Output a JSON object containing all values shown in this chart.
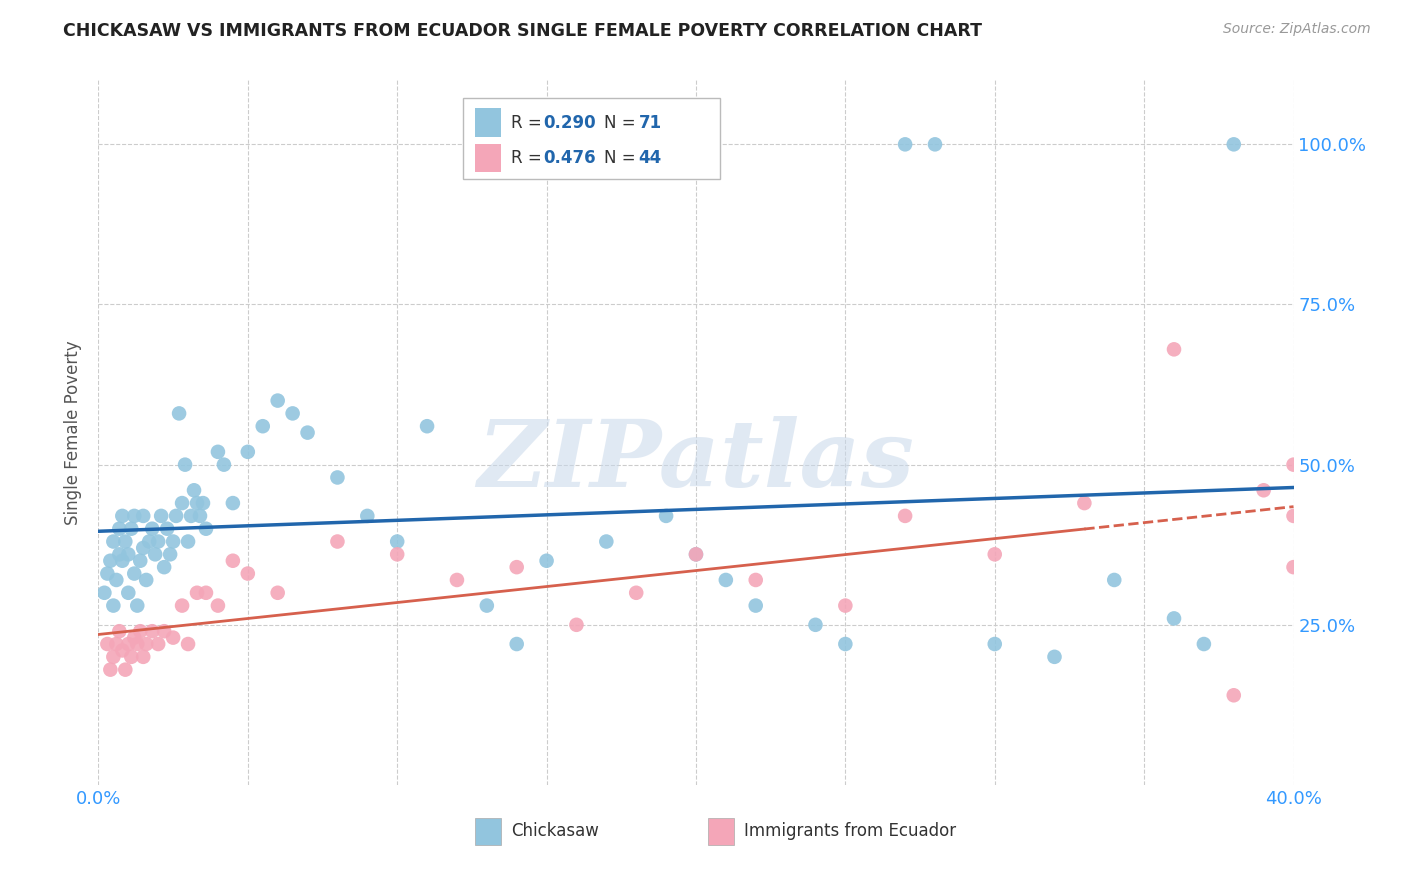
{
  "title": "CHICKASAW VS IMMIGRANTS FROM ECUADOR SINGLE FEMALE POVERTY CORRELATION CHART",
  "source": "Source: ZipAtlas.com",
  "ylabel": "Single Female Poverty",
  "legend_label1": "Chickasaw",
  "legend_label2": "Immigrants from Ecuador",
  "R1": 0.29,
  "N1": 71,
  "R2": 0.476,
  "N2": 44,
  "color1": "#92c5de",
  "color2": "#f4a6b8",
  "line1_color": "#2166ac",
  "line2_color": "#d6604d",
  "watermark_color": "#c8d8ea",
  "background_color": "#ffffff",
  "grid_color": "#cccccc",
  "ytick_color": "#3399ff",
  "xtick_color": "#3399ff",
  "xlim": [
    0.0,
    0.4
  ],
  "ylim": [
    0.0,
    1.1
  ],
  "chickasaw_x": [
    0.002,
    0.003,
    0.004,
    0.005,
    0.005,
    0.006,
    0.007,
    0.007,
    0.008,
    0.008,
    0.009,
    0.01,
    0.01,
    0.011,
    0.012,
    0.012,
    0.013,
    0.014,
    0.015,
    0.015,
    0.016,
    0.017,
    0.018,
    0.019,
    0.02,
    0.021,
    0.022,
    0.023,
    0.024,
    0.025,
    0.026,
    0.027,
    0.028,
    0.029,
    0.03,
    0.031,
    0.032,
    0.033,
    0.034,
    0.035,
    0.036,
    0.04,
    0.042,
    0.045,
    0.05,
    0.055,
    0.06,
    0.065,
    0.07,
    0.08,
    0.09,
    0.1,
    0.11,
    0.13,
    0.14,
    0.15,
    0.17,
    0.19,
    0.2,
    0.21,
    0.22,
    0.24,
    0.25,
    0.27,
    0.28,
    0.3,
    0.32,
    0.34,
    0.36,
    0.37,
    0.38
  ],
  "chickasaw_y": [
    0.3,
    0.33,
    0.35,
    0.28,
    0.38,
    0.32,
    0.36,
    0.4,
    0.35,
    0.42,
    0.38,
    0.3,
    0.36,
    0.4,
    0.33,
    0.42,
    0.28,
    0.35,
    0.37,
    0.42,
    0.32,
    0.38,
    0.4,
    0.36,
    0.38,
    0.42,
    0.34,
    0.4,
    0.36,
    0.38,
    0.42,
    0.58,
    0.44,
    0.5,
    0.38,
    0.42,
    0.46,
    0.44,
    0.42,
    0.44,
    0.4,
    0.52,
    0.5,
    0.44,
    0.52,
    0.56,
    0.6,
    0.58,
    0.55,
    0.48,
    0.42,
    0.38,
    0.56,
    0.28,
    0.22,
    0.35,
    0.38,
    0.42,
    0.36,
    0.32,
    0.28,
    0.25,
    0.22,
    1.0,
    1.0,
    0.22,
    0.2,
    0.32,
    0.26,
    0.22,
    1.0
  ],
  "ecuador_x": [
    0.003,
    0.004,
    0.005,
    0.006,
    0.007,
    0.008,
    0.009,
    0.01,
    0.011,
    0.012,
    0.013,
    0.014,
    0.015,
    0.016,
    0.018,
    0.02,
    0.022,
    0.025,
    0.028,
    0.03,
    0.033,
    0.036,
    0.04,
    0.045,
    0.05,
    0.06,
    0.08,
    0.1,
    0.12,
    0.14,
    0.16,
    0.18,
    0.2,
    0.22,
    0.25,
    0.27,
    0.3,
    0.33,
    0.36,
    0.38,
    0.39,
    0.4,
    0.4,
    0.4
  ],
  "ecuador_y": [
    0.22,
    0.18,
    0.2,
    0.22,
    0.24,
    0.21,
    0.18,
    0.22,
    0.2,
    0.23,
    0.22,
    0.24,
    0.2,
    0.22,
    0.24,
    0.22,
    0.24,
    0.23,
    0.28,
    0.22,
    0.3,
    0.3,
    0.28,
    0.35,
    0.33,
    0.3,
    0.38,
    0.36,
    0.32,
    0.34,
    0.25,
    0.3,
    0.36,
    0.32,
    0.28,
    0.42,
    0.36,
    0.44,
    0.68,
    0.14,
    0.46,
    0.5,
    0.34,
    0.42
  ]
}
